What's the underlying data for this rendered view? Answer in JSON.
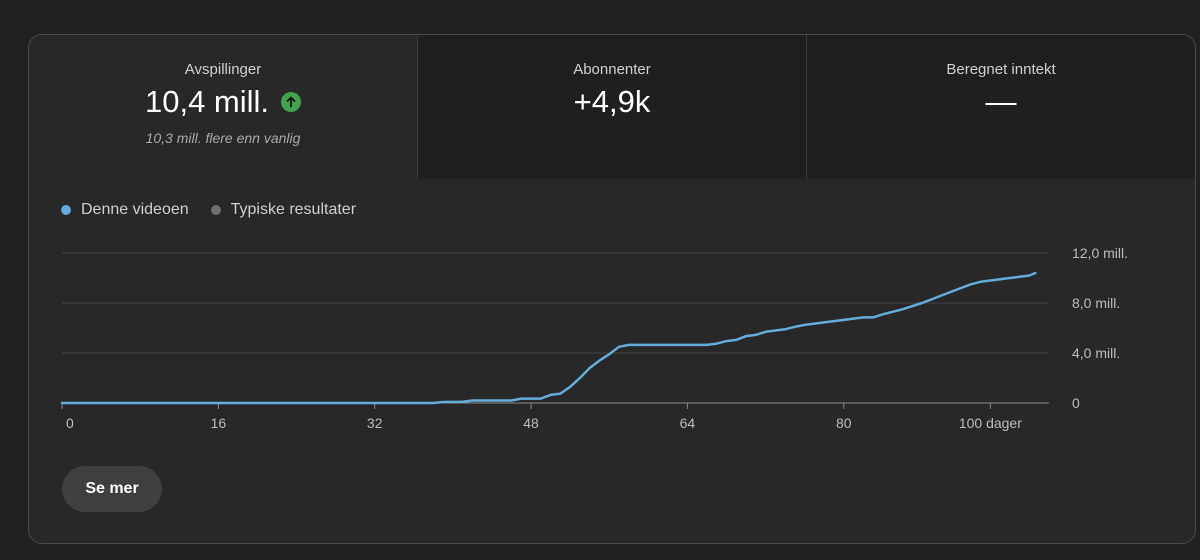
{
  "metrics": [
    {
      "label": "Avspillinger",
      "value": "10,4 mill.",
      "note": "10,3 mill. flere enn vanlig",
      "trend": "up"
    },
    {
      "label": "Abonnenter",
      "value": "+4,9k"
    },
    {
      "label": "Beregnet inntekt",
      "value": "—"
    }
  ],
  "legend": [
    {
      "label": "Denne videoen",
      "color": "#65acd9"
    },
    {
      "label": "Typiske resultater",
      "color": "#6f6f6f"
    }
  ],
  "button": {
    "label": "Se mer"
  },
  "chart_data": {
    "type": "line",
    "x_ticks": [
      {
        "value": 0,
        "label": "0"
      },
      {
        "value": 16,
        "label": "16"
      },
      {
        "value": 32,
        "label": "32"
      },
      {
        "value": 48,
        "label": "48"
      },
      {
        "value": 64,
        "label": "64"
      },
      {
        "value": 80,
        "label": "80"
      },
      {
        "value": 95,
        "label": "100 dager"
      }
    ],
    "y_ticks": [
      {
        "value": 0,
        "label": "0"
      },
      {
        "value": 4000000,
        "label": "4,0 mill."
      },
      {
        "value": 8000000,
        "label": "8,0 mill."
      },
      {
        "value": 12000000,
        "label": "12,0 mill."
      }
    ],
    "xlim": [
      0,
      101
    ],
    "ylim": [
      0,
      12000000
    ],
    "grid": true,
    "legend_position": "top-left",
    "series": [
      {
        "name": "Denne videoen",
        "color": "#65acd9",
        "points": [
          [
            0,
            0
          ],
          [
            38,
            0
          ],
          [
            39,
            80000
          ],
          [
            41,
            100000
          ],
          [
            42,
            200000
          ],
          [
            46,
            200000
          ],
          [
            47,
            350000
          ],
          [
            49,
            350000
          ],
          [
            50,
            650000
          ],
          [
            51,
            750000
          ],
          [
            52,
            1300000
          ],
          [
            53,
            2000000
          ],
          [
            54,
            2800000
          ],
          [
            55,
            3400000
          ],
          [
            56,
            3900000
          ],
          [
            57,
            4500000
          ],
          [
            58,
            4650000
          ],
          [
            66,
            4650000
          ],
          [
            67,
            4750000
          ],
          [
            68,
            4950000
          ],
          [
            69,
            5050000
          ],
          [
            70,
            5350000
          ],
          [
            71,
            5450000
          ],
          [
            72,
            5700000
          ],
          [
            74,
            5900000
          ],
          [
            75,
            6100000
          ],
          [
            76,
            6250000
          ],
          [
            78,
            6450000
          ],
          [
            80,
            6650000
          ],
          [
            82,
            6850000
          ],
          [
            83,
            6850000
          ],
          [
            84,
            7100000
          ],
          [
            85,
            7300000
          ],
          [
            86,
            7500000
          ],
          [
            88,
            8000000
          ],
          [
            90,
            8600000
          ],
          [
            92,
            9200000
          ],
          [
            93,
            9500000
          ],
          [
            94,
            9700000
          ],
          [
            96,
            9900000
          ],
          [
            98,
            10100000
          ],
          [
            99,
            10200000
          ],
          [
            99.6,
            10400000
          ]
        ]
      }
    ]
  }
}
